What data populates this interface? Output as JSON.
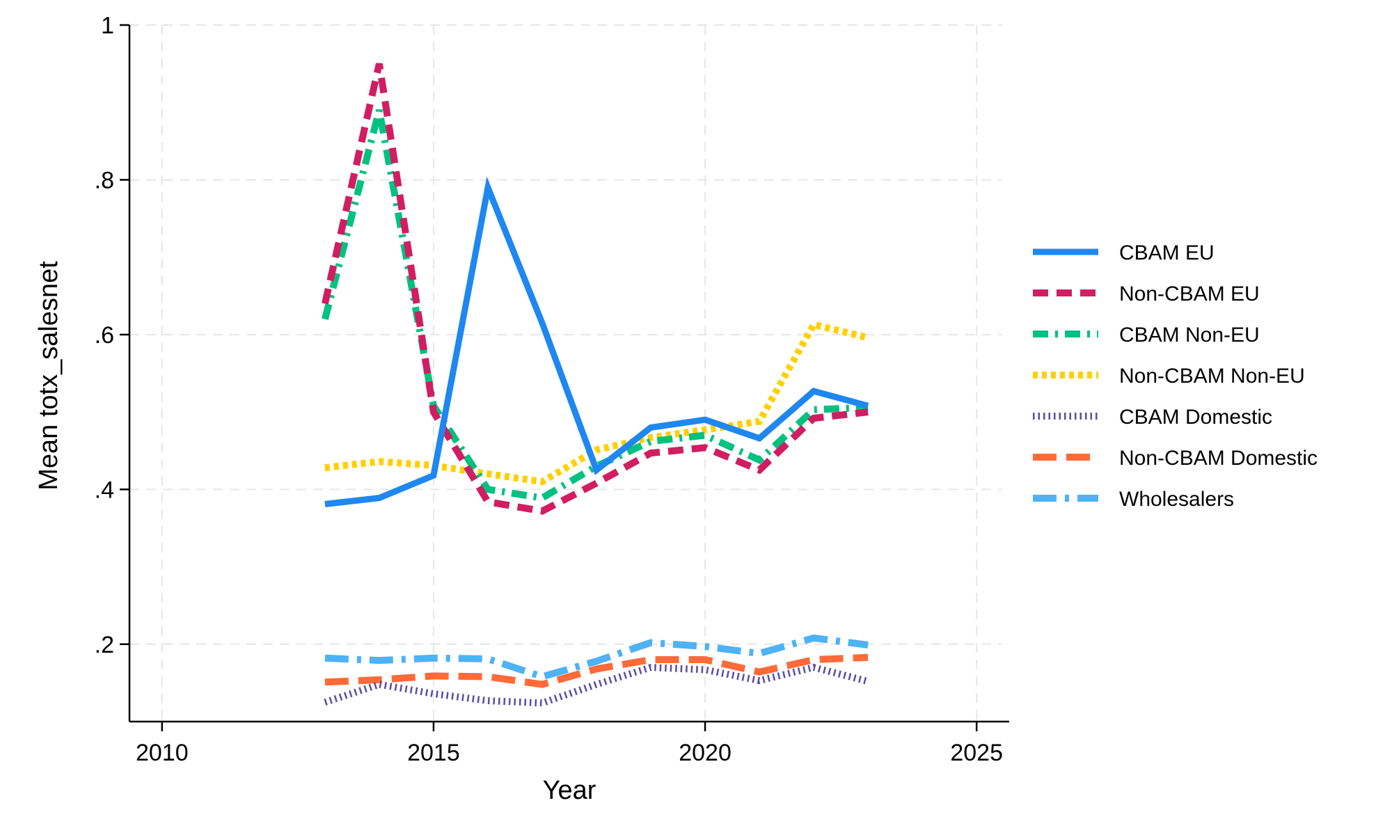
{
  "chart_data": {
    "type": "line",
    "xlabel": "Year",
    "ylabel": "Mean totx_salesnet",
    "xlim": [
      2009.4,
      2025.6
    ],
    "ylim": [
      0.1,
      1.0
    ],
    "xticks": [
      2010,
      2015,
      2020,
      2025
    ],
    "xtick_labels": [
      "2010",
      "2015",
      "2020",
      "2025"
    ],
    "yticks": [
      0.2,
      0.4,
      0.6,
      0.8,
      1.0
    ],
    "ytick_labels": [
      ".2",
      ".4",
      ".6",
      ".8",
      "1"
    ],
    "grid": true,
    "legend_position": "right",
    "x": [
      2013,
      2014,
      2015,
      2016,
      2017,
      2018,
      2019,
      2020,
      2021,
      2022,
      2023
    ],
    "series": [
      {
        "name": "CBAM EU",
        "color": "#1f87f0",
        "style": "solid",
        "values": [
          0.381,
          0.389,
          0.418,
          0.79,
          0.615,
          0.425,
          0.48,
          0.49,
          0.466,
          0.527,
          0.508
        ]
      },
      {
        "name": "Non-CBAM EU",
        "color": "#d11d61",
        "style": "dash",
        "values": [
          0.64,
          0.95,
          0.5,
          0.384,
          0.372,
          0.408,
          0.447,
          0.454,
          0.425,
          0.492,
          0.5
        ]
      },
      {
        "name": "CBAM Non-EU",
        "color": "#00c17f",
        "style": "dashdot",
        "values": [
          0.62,
          0.89,
          0.508,
          0.4,
          0.389,
          0.43,
          0.462,
          0.47,
          0.438,
          0.503,
          0.506
        ]
      },
      {
        "name": "Non-CBAM Non-EU",
        "color": "#ffd000",
        "style": "dot",
        "values": [
          0.428,
          0.436,
          0.431,
          0.42,
          0.41,
          0.451,
          0.467,
          0.477,
          0.488,
          0.613,
          0.596
        ]
      },
      {
        "name": "CBAM Domestic",
        "color": "#5a4ca6",
        "style": "shortdot",
        "values": [
          0.125,
          0.148,
          0.136,
          0.127,
          0.124,
          0.148,
          0.17,
          0.167,
          0.153,
          0.17,
          0.152
        ]
      },
      {
        "name": "Non-CBAM Domestic",
        "color": "#ff6a38",
        "style": "longdash",
        "values": [
          0.151,
          0.154,
          0.159,
          0.158,
          0.148,
          0.168,
          0.18,
          0.18,
          0.164,
          0.18,
          0.183
        ]
      },
      {
        "name": "Wholesalers",
        "color": "#4eb2f5",
        "style": "longdashdot",
        "values": [
          0.182,
          0.179,
          0.182,
          0.181,
          0.158,
          0.178,
          0.202,
          0.197,
          0.188,
          0.208,
          0.199
        ]
      }
    ]
  }
}
